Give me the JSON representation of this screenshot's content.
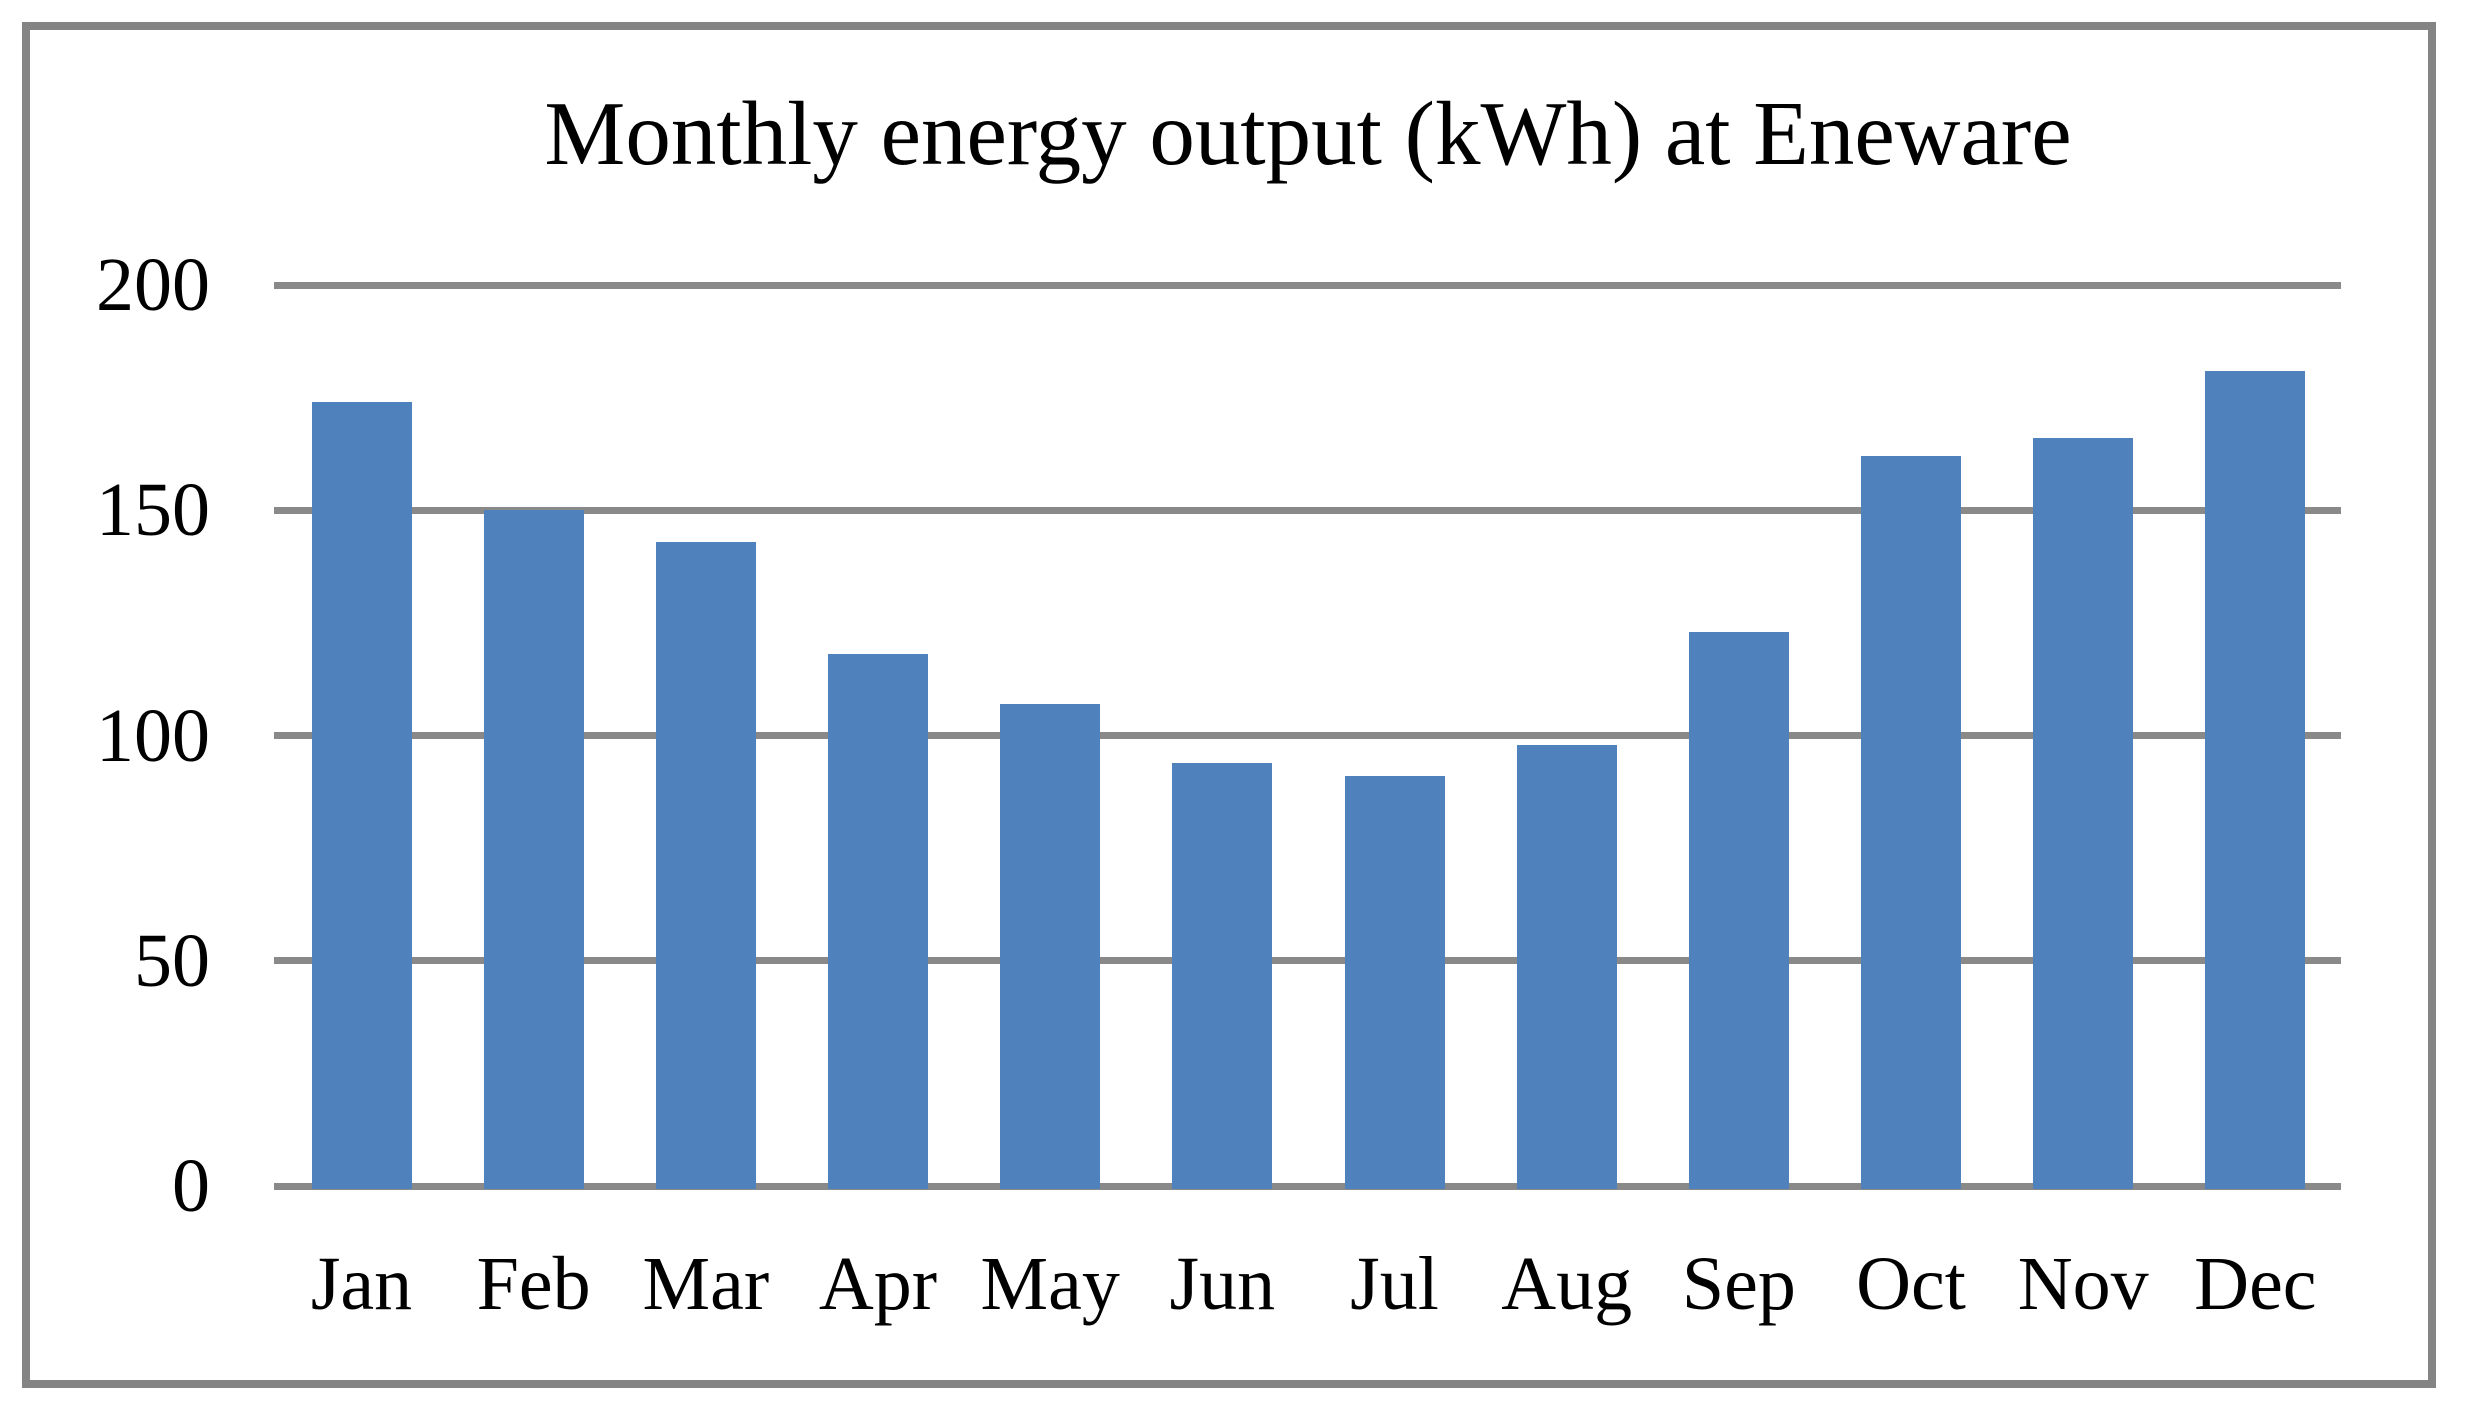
{
  "chart_data": {
    "type": "bar",
    "title": "Monthly energy output (kWh) at Eneware",
    "categories": [
      "Jan",
      "Feb",
      "Mar",
      "Apr",
      "May",
      "Jun",
      "Jul",
      "Aug",
      "Sep",
      "Oct",
      "Nov",
      "Dec"
    ],
    "values": [
      174,
      150,
      143,
      118,
      107,
      94,
      91,
      98,
      123,
      162,
      166,
      181
    ],
    "xlabel": "",
    "ylabel": "",
    "ylim": [
      0,
      200
    ],
    "yticks": [
      0,
      50,
      100,
      150,
      200
    ],
    "grid": true,
    "legend_position": "none",
    "bar_color": "#4F81BD",
    "gridline_color": "#898989",
    "frame_border_color": "#848484",
    "text_color": "#000000",
    "background_color": "#FFFFFF"
  }
}
